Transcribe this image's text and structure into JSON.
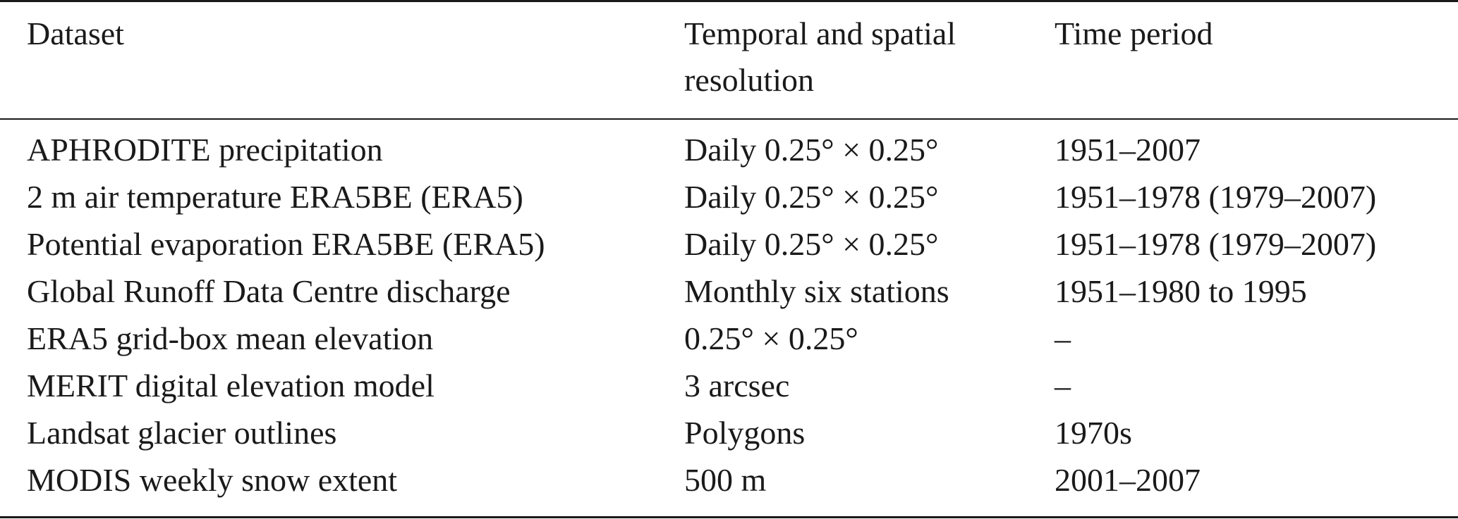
{
  "table": {
    "headers": [
      "Dataset",
      "Temporal and spatial resolution",
      "Time period"
    ],
    "rows": [
      [
        "APHRODITE precipitation",
        "Daily 0.25° × 0.25°",
        "1951–2007"
      ],
      [
        "2 m air temperature ERA5BE (ERA5)",
        "Daily 0.25° × 0.25°",
        "1951–1978 (1979–2007)"
      ],
      [
        "Potential evaporation ERA5BE (ERA5)",
        "Daily 0.25° × 0.25°",
        "1951–1978 (1979–2007)"
      ],
      [
        "Global Runoff Data Centre discharge",
        "Monthly six stations",
        "1951–1980 to 1995"
      ],
      [
        "ERA5 grid-box mean elevation",
        "0.25° × 0.25°",
        "–"
      ],
      [
        "MERIT digital elevation model",
        "3 arcsec",
        "–"
      ],
      [
        "Landsat glacier outlines",
        "Polygons",
        "1970s"
      ],
      [
        "MODIS weekly snow extent",
        "500 m",
        "2001–2007"
      ]
    ]
  }
}
